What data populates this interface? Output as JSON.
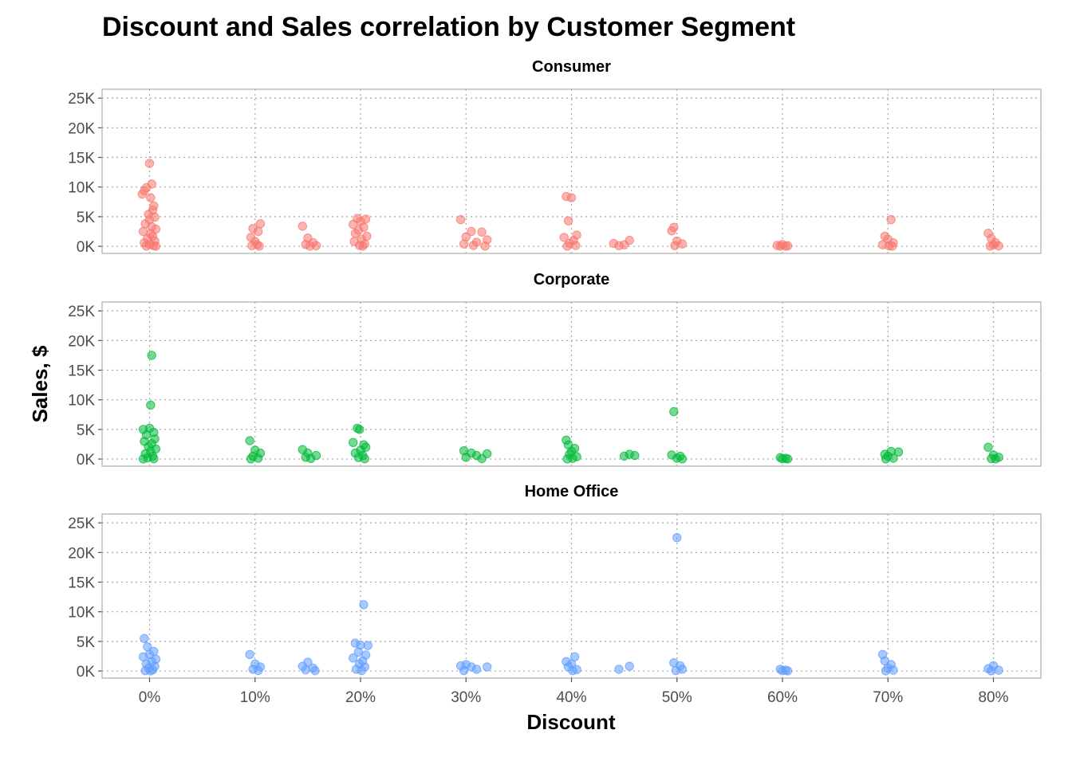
{
  "chart_data": {
    "type": "scatter",
    "title": "Discount and Sales correlation by Customer Segment",
    "xlabel": "Discount",
    "ylabel": "Sales, $",
    "x_ticks": [
      "0%",
      "10%",
      "20%",
      "30%",
      "40%",
      "50%",
      "60%",
      "70%",
      "80%"
    ],
    "x_tick_values": [
      0,
      0.1,
      0.2,
      0.3,
      0.4,
      0.5,
      0.6,
      0.7,
      0.8
    ],
    "y_ticks": [
      "0K",
      "5K",
      "10K",
      "15K",
      "20K",
      "25K"
    ],
    "y_tick_values": [
      0,
      5000,
      10000,
      15000,
      20000,
      25000
    ],
    "xlim": [
      -0.045,
      0.845
    ],
    "ylim": [
      -1200,
      26500
    ],
    "grid": true,
    "point_style": "semi-transparent jittered dots",
    "facets": [
      {
        "name": "Consumer",
        "color": "#F8766D",
        "points": [
          [
            0.0,
            14000
          ],
          [
            0.002,
            10500
          ],
          [
            0.001,
            8200
          ],
          [
            -0.003,
            9900
          ],
          [
            -0.005,
            9400
          ],
          [
            -0.007,
            8800
          ],
          [
            0.004,
            6800
          ],
          [
            0.003,
            6100
          ],
          [
            -0.001,
            5400
          ],
          [
            0.005,
            4900
          ],
          [
            0.0,
            4500
          ],
          [
            -0.004,
            3800
          ],
          [
            0.002,
            3300
          ],
          [
            0.006,
            2900
          ],
          [
            -0.006,
            2500
          ],
          [
            0.001,
            2100
          ],
          [
            0.003,
            1700
          ],
          [
            -0.002,
            1300
          ],
          [
            0.005,
            900
          ],
          [
            -0.005,
            600
          ],
          [
            0.0,
            300
          ],
          [
            0.004,
            100
          ],
          [
            -0.003,
            50
          ],
          [
            0.006,
            20
          ],
          [
            0.098,
            3000
          ],
          [
            0.105,
            3800
          ],
          [
            0.103,
            2500
          ],
          [
            0.096,
            1500
          ],
          [
            0.1,
            800
          ],
          [
            0.102,
            300
          ],
          [
            0.097,
            100
          ],
          [
            0.104,
            40
          ],
          [
            0.145,
            3400
          ],
          [
            0.15,
            1400
          ],
          [
            0.155,
            600
          ],
          [
            0.148,
            300
          ],
          [
            0.158,
            100
          ],
          [
            0.152,
            30
          ],
          [
            0.197,
            4700
          ],
          [
            0.205,
            4600
          ],
          [
            0.2,
            4200
          ],
          [
            0.193,
            3700
          ],
          [
            0.203,
            3200
          ],
          [
            0.198,
            2700
          ],
          [
            0.195,
            2200
          ],
          [
            0.206,
            1700
          ],
          [
            0.201,
            1200
          ],
          [
            0.194,
            800
          ],
          [
            0.204,
            400
          ],
          [
            0.199,
            150
          ],
          [
            0.202,
            40
          ],
          [
            0.295,
            4500
          ],
          [
            0.305,
            2500
          ],
          [
            0.315,
            2400
          ],
          [
            0.3,
            1600
          ],
          [
            0.32,
            1100
          ],
          [
            0.31,
            700
          ],
          [
            0.298,
            400
          ],
          [
            0.307,
            150
          ],
          [
            0.318,
            50
          ],
          [
            0.395,
            8400
          ],
          [
            0.4,
            8200
          ],
          [
            0.397,
            4300
          ],
          [
            0.405,
            1900
          ],
          [
            0.393,
            1500
          ],
          [
            0.402,
            1000
          ],
          [
            0.398,
            500
          ],
          [
            0.404,
            150
          ],
          [
            0.396,
            40
          ],
          [
            0.44,
            500
          ],
          [
            0.45,
            250
          ],
          [
            0.455,
            1000
          ],
          [
            0.445,
            100
          ],
          [
            0.497,
            3200
          ],
          [
            0.495,
            2600
          ],
          [
            0.5,
            900
          ],
          [
            0.505,
            400
          ],
          [
            0.498,
            120
          ],
          [
            0.6,
            300
          ],
          [
            0.595,
            150
          ],
          [
            0.605,
            80
          ],
          [
            0.598,
            40
          ],
          [
            0.603,
            20
          ],
          [
            0.703,
            4500
          ],
          [
            0.697,
            1700
          ],
          [
            0.7,
            1200
          ],
          [
            0.705,
            600
          ],
          [
            0.695,
            250
          ],
          [
            0.701,
            80
          ],
          [
            0.704,
            30
          ],
          [
            0.795,
            2200
          ],
          [
            0.798,
            1300
          ],
          [
            0.802,
            600
          ],
          [
            0.8,
            250
          ],
          [
            0.805,
            80
          ],
          [
            0.797,
            30
          ]
        ]
      },
      {
        "name": "Corporate",
        "color": "#00BA38",
        "points": [
          [
            0.002,
            17500
          ],
          [
            0.001,
            9100
          ],
          [
            -0.006,
            5000
          ],
          [
            0.0,
            5200
          ],
          [
            0.004,
            4500
          ],
          [
            -0.003,
            4100
          ],
          [
            0.005,
            3400
          ],
          [
            -0.005,
            3000
          ],
          [
            0.002,
            2600
          ],
          [
            -0.001,
            2100
          ],
          [
            0.006,
            1700
          ],
          [
            0.001,
            1300
          ],
          [
            -0.004,
            900
          ],
          [
            0.003,
            500
          ],
          [
            -0.002,
            200
          ],
          [
            0.004,
            60
          ],
          [
            -0.006,
            20
          ],
          [
            0.095,
            3100
          ],
          [
            0.1,
            1500
          ],
          [
            0.105,
            1000
          ],
          [
            0.098,
            500
          ],
          [
            0.103,
            150
          ],
          [
            0.096,
            40
          ],
          [
            0.145,
            1600
          ],
          [
            0.15,
            1000
          ],
          [
            0.158,
            600
          ],
          [
            0.148,
            300
          ],
          [
            0.153,
            100
          ],
          [
            0.197,
            5200
          ],
          [
            0.199,
            5000
          ],
          [
            0.193,
            2800
          ],
          [
            0.203,
            2400
          ],
          [
            0.205,
            2000
          ],
          [
            0.2,
            1500
          ],
          [
            0.195,
            1000
          ],
          [
            0.202,
            600
          ],
          [
            0.198,
            250
          ],
          [
            0.204,
            60
          ],
          [
            0.298,
            1400
          ],
          [
            0.305,
            1000
          ],
          [
            0.32,
            900
          ],
          [
            0.31,
            600
          ],
          [
            0.3,
            300
          ],
          [
            0.315,
            80
          ],
          [
            0.395,
            3200
          ],
          [
            0.397,
            2400
          ],
          [
            0.403,
            1800
          ],
          [
            0.4,
            1300
          ],
          [
            0.398,
            800
          ],
          [
            0.405,
            400
          ],
          [
            0.401,
            120
          ],
          [
            0.396,
            30
          ],
          [
            0.45,
            500
          ],
          [
            0.455,
            800
          ],
          [
            0.46,
            600
          ],
          [
            0.497,
            8000
          ],
          [
            0.495,
            700
          ],
          [
            0.503,
            500
          ],
          [
            0.5,
            150
          ],
          [
            0.505,
            40
          ],
          [
            0.598,
            250
          ],
          [
            0.603,
            120
          ],
          [
            0.6,
            50
          ],
          [
            0.605,
            20
          ],
          [
            0.697,
            800
          ],
          [
            0.703,
            1300
          ],
          [
            0.71,
            1200
          ],
          [
            0.7,
            500
          ],
          [
            0.705,
            150
          ],
          [
            0.698,
            40
          ],
          [
            0.795,
            2000
          ],
          [
            0.8,
            700
          ],
          [
            0.805,
            300
          ],
          [
            0.798,
            80
          ],
          [
            0.802,
            20
          ]
        ]
      },
      {
        "name": "Home Office",
        "color": "#619CFF",
        "points": [
          [
            -0.005,
            5500
          ],
          [
            -0.002,
            4100
          ],
          [
            0.004,
            3300
          ],
          [
            0.0,
            2800
          ],
          [
            -0.006,
            2400
          ],
          [
            0.006,
            2000
          ],
          [
            0.002,
            1600
          ],
          [
            -0.003,
            1200
          ],
          [
            0.005,
            800
          ],
          [
            -0.001,
            500
          ],
          [
            0.003,
            200
          ],
          [
            -0.004,
            60
          ],
          [
            0.001,
            20
          ],
          [
            0.095,
            2800
          ],
          [
            0.1,
            1200
          ],
          [
            0.105,
            700
          ],
          [
            0.098,
            300
          ],
          [
            0.103,
            80
          ],
          [
            0.145,
            800
          ],
          [
            0.15,
            1500
          ],
          [
            0.155,
            500
          ],
          [
            0.148,
            200
          ],
          [
            0.157,
            60
          ],
          [
            0.203,
            11200
          ],
          [
            0.195,
            4700
          ],
          [
            0.2,
            4400
          ],
          [
            0.207,
            4300
          ],
          [
            0.198,
            3200
          ],
          [
            0.205,
            2700
          ],
          [
            0.193,
            2200
          ],
          [
            0.202,
            1700
          ],
          [
            0.199,
            1200
          ],
          [
            0.204,
            700
          ],
          [
            0.196,
            300
          ],
          [
            0.201,
            80
          ],
          [
            0.295,
            900
          ],
          [
            0.3,
            1100
          ],
          [
            0.305,
            700
          ],
          [
            0.32,
            700
          ],
          [
            0.31,
            300
          ],
          [
            0.298,
            80
          ],
          [
            0.395,
            1600
          ],
          [
            0.403,
            2400
          ],
          [
            0.4,
            1200
          ],
          [
            0.397,
            700
          ],
          [
            0.405,
            250
          ],
          [
            0.401,
            60
          ],
          [
            0.445,
            300
          ],
          [
            0.455,
            800
          ],
          [
            0.5,
            22500
          ],
          [
            0.497,
            1400
          ],
          [
            0.503,
            900
          ],
          [
            0.505,
            300
          ],
          [
            0.499,
            80
          ],
          [
            0.598,
            300
          ],
          [
            0.603,
            150
          ],
          [
            0.6,
            60
          ],
          [
            0.605,
            20
          ],
          [
            0.695,
            2800
          ],
          [
            0.697,
            1700
          ],
          [
            0.703,
            1100
          ],
          [
            0.7,
            500
          ],
          [
            0.705,
            150
          ],
          [
            0.698,
            40
          ],
          [
            0.8,
            900
          ],
          [
            0.795,
            400
          ],
          [
            0.805,
            150
          ],
          [
            0.798,
            40
          ]
        ]
      }
    ]
  }
}
